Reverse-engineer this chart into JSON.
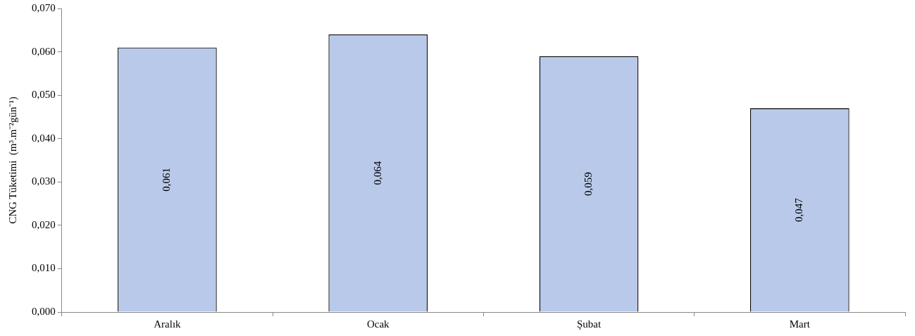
{
  "chart_data": {
    "type": "bar",
    "ylabel": "CNG Tüketimi  (m³.m⁻²gün⁻¹)",
    "categories": [
      "Aralık",
      "Ocak",
      "Şubat",
      "Mart"
    ],
    "values": [
      0.061,
      0.064,
      0.059,
      0.047
    ],
    "value_labels": [
      "0,061",
      "0,064",
      "0,059",
      "0,047"
    ],
    "color": "#b9c9ea",
    "ylim": [
      0,
      0.07
    ],
    "yticks": [
      {
        "value": 0,
        "label": "0,000"
      },
      {
        "value": 0.01,
        "label": "0,010"
      },
      {
        "value": 0.02,
        "label": "0,020"
      },
      {
        "value": 0.03,
        "label": "0,030"
      },
      {
        "value": 0.04,
        "label": "0,040"
      },
      {
        "value": 0.05,
        "label": "0,050"
      },
      {
        "value": 0.06,
        "label": "0,060"
      },
      {
        "value": 0.07,
        "label": "0,070"
      }
    ],
    "grid": false,
    "legend": false
  }
}
